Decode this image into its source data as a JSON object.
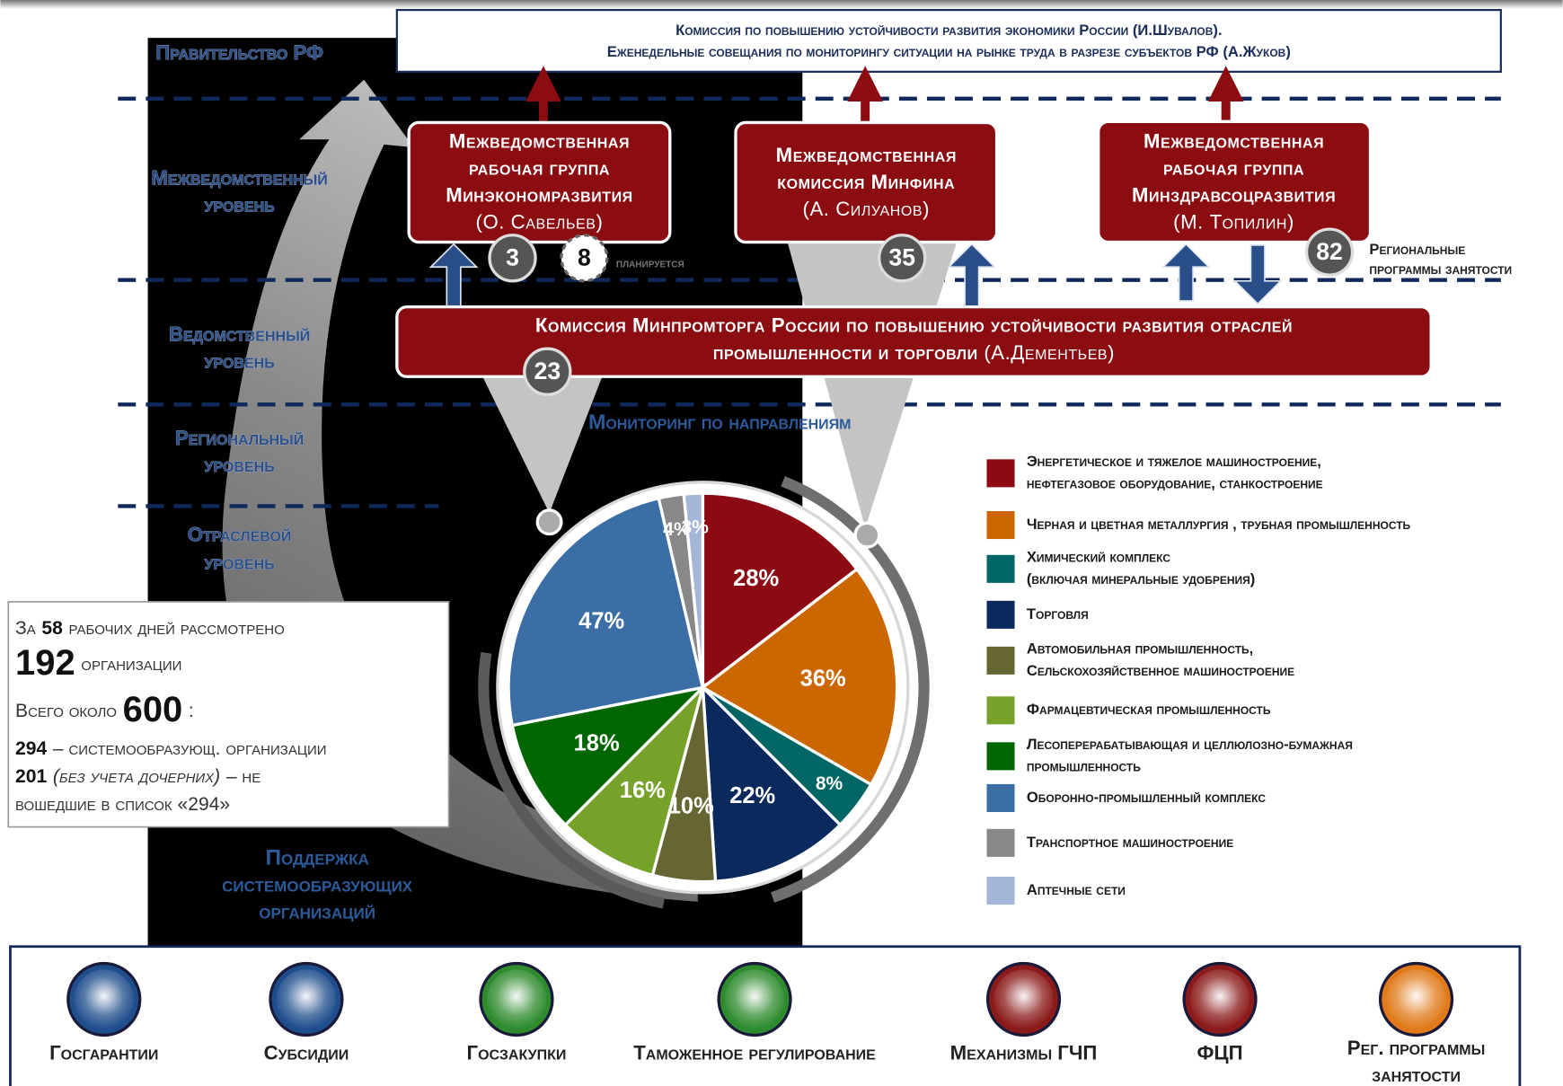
{
  "header": {
    "lines": [
      "Комиссия по повышению устойчивости развития экономики России (И.Шувалов).",
      "Еженедельные совещания по мониторингу ситуации на рынке труда в разрезе субъектов РФ (А.Жуков)"
    ]
  },
  "levels": [
    [
      "Правительство РФ"
    ],
    [
      "Межведомственный",
      "уровень"
    ],
    [
      "Ведомственный",
      "уровень"
    ],
    [
      "Региональный",
      "уровень"
    ],
    [
      "Отраслевой",
      "уровень"
    ]
  ],
  "groups": [
    {
      "lines": [
        "Межведомственная",
        "рабочая группа",
        "Минэкономразвития"
      ],
      "person": "(О. Савельев)"
    },
    {
      "lines": [
        "Межведомственная",
        "комиссия Минфина"
      ],
      "person": "(А. Силуанов)"
    },
    {
      "lines": [
        "Межведомственная",
        "рабочая группа",
        "Минздравсоцразвития"
      ],
      "person": "(М. Топилин)"
    }
  ],
  "badges": [
    3,
    8,
    35,
    82,
    23
  ],
  "planned_note": "планируется",
  "regional_note": [
    "Региональные",
    "программы занятости"
  ],
  "ministry": {
    "lines": [
      "Комиссия Минпромторга России по повышению устойчивости развития отраслей",
      "промышленности и торговли"
    ],
    "person": "(А.Дементьев)"
  },
  "monitoring_title": "Мониторинг по направлениям",
  "support_title": [
    "Поддержка",
    "системообразующих",
    "организаций"
  ],
  "stats": {
    "days_pre": "За",
    "days": 58,
    "days_post": "рабочих дней рассмотрено",
    "organizations": 192,
    "organizations_label": "организации",
    "total_pre": "Всего около",
    "total": 600,
    "total_post": ":",
    "backbone": 294,
    "backbone_label": "– системообразующ. организации",
    "other": 201,
    "other_note": "(без учета дочерних)",
    "other_label": [
      "– не",
      "вошедшие в список «294»"
    ]
  },
  "tools": [
    {
      "label": [
        "Госгарантии"
      ],
      "color": "#1f4e8c"
    },
    {
      "label": [
        "Субсидии"
      ],
      "color": "#1f4e8c"
    },
    {
      "label": [
        "Госзакупки"
      ],
      "color": "#2e8b2e"
    },
    {
      "label": [
        "Таможенное регулирование"
      ],
      "color": "#2e8b2e"
    },
    {
      "label": [
        "Механизмы ГЧП"
      ],
      "color": "#8b1a1a"
    },
    {
      "label": [
        "ФЦП"
      ],
      "color": "#8b1a1a"
    },
    {
      "label": [
        "Рег. программы",
        "занятости"
      ],
      "color": "#e07a1a"
    }
  ],
  "chart_data": {
    "type": "pie",
    "categories": [
      [
        "Энергетическое и тяжелое машиностроение,",
        "нефтегазовое оборудование, станкостроение"
      ],
      [
        "Черная и цветная металлургия , трубная промышленность"
      ],
      [
        "Химический комплекс",
        "(включая минеральные удобрения)"
      ],
      [
        "Торговля"
      ],
      [
        "Автомобильная промышленность,",
        "Сельскохозяйственное машиностроение"
      ],
      [
        "Фармацевтическая промышленность"
      ],
      [
        "Лесоперерабатывающая и целлюлозно-бумажная",
        "промышленность"
      ],
      [
        "Оборонно-промышленный комплекс"
      ],
      [
        "Транспортное машиностроение"
      ],
      [
        "Аптечные сети"
      ]
    ],
    "values": [
      28,
      36,
      8,
      22,
      10,
      16,
      18,
      47,
      4,
      3
    ],
    "value_labels": [
      "28%",
      "36%",
      "8%",
      "22%",
      "10%",
      "16%",
      "18%",
      "47%",
      "4%",
      "3%"
    ],
    "colors": [
      "#8b0a14",
      "#cc6600",
      "#006666",
      "#0a2a5e",
      "#666633",
      "#77a22a",
      "#006600",
      "#3a6ea5",
      "#888888",
      "#a3b6d8"
    ]
  }
}
